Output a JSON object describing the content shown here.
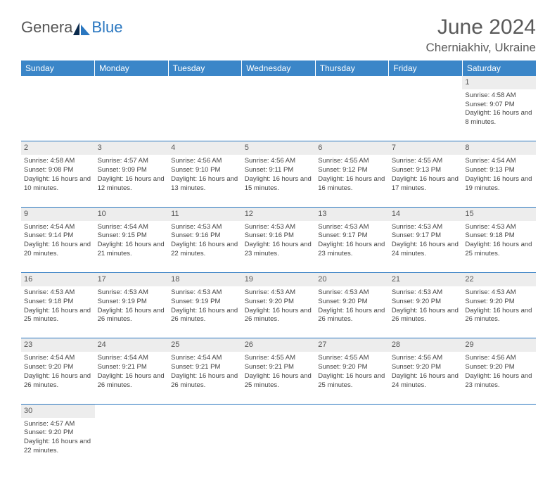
{
  "brand": {
    "part1": "Genera",
    "part2": "Blue"
  },
  "title": "June 2024",
  "location": "Cherniakhiv, Ukraine",
  "colors": {
    "header_bg": "#3b86c8",
    "header_text": "#ffffff",
    "daynum_bg": "#ededed",
    "divider": "#2a77c0",
    "text": "#444444",
    "title_text": "#5a5a5a",
    "brand_accent": "#2a77c0"
  },
  "weekdays": [
    "Sunday",
    "Monday",
    "Tuesday",
    "Wednesday",
    "Thursday",
    "Friday",
    "Saturday"
  ],
  "weeks": [
    [
      null,
      null,
      null,
      null,
      null,
      null,
      {
        "day": "1",
        "sunrise": "Sunrise: 4:58 AM",
        "sunset": "Sunset: 9:07 PM",
        "daylight": "Daylight: 16 hours and 8 minutes."
      }
    ],
    [
      {
        "day": "2",
        "sunrise": "Sunrise: 4:58 AM",
        "sunset": "Sunset: 9:08 PM",
        "daylight": "Daylight: 16 hours and 10 minutes."
      },
      {
        "day": "3",
        "sunrise": "Sunrise: 4:57 AM",
        "sunset": "Sunset: 9:09 PM",
        "daylight": "Daylight: 16 hours and 12 minutes."
      },
      {
        "day": "4",
        "sunrise": "Sunrise: 4:56 AM",
        "sunset": "Sunset: 9:10 PM",
        "daylight": "Daylight: 16 hours and 13 minutes."
      },
      {
        "day": "5",
        "sunrise": "Sunrise: 4:56 AM",
        "sunset": "Sunset: 9:11 PM",
        "daylight": "Daylight: 16 hours and 15 minutes."
      },
      {
        "day": "6",
        "sunrise": "Sunrise: 4:55 AM",
        "sunset": "Sunset: 9:12 PM",
        "daylight": "Daylight: 16 hours and 16 minutes."
      },
      {
        "day": "7",
        "sunrise": "Sunrise: 4:55 AM",
        "sunset": "Sunset: 9:13 PM",
        "daylight": "Daylight: 16 hours and 17 minutes."
      },
      {
        "day": "8",
        "sunrise": "Sunrise: 4:54 AM",
        "sunset": "Sunset: 9:13 PM",
        "daylight": "Daylight: 16 hours and 19 minutes."
      }
    ],
    [
      {
        "day": "9",
        "sunrise": "Sunrise: 4:54 AM",
        "sunset": "Sunset: 9:14 PM",
        "daylight": "Daylight: 16 hours and 20 minutes."
      },
      {
        "day": "10",
        "sunrise": "Sunrise: 4:54 AM",
        "sunset": "Sunset: 9:15 PM",
        "daylight": "Daylight: 16 hours and 21 minutes."
      },
      {
        "day": "11",
        "sunrise": "Sunrise: 4:53 AM",
        "sunset": "Sunset: 9:16 PM",
        "daylight": "Daylight: 16 hours and 22 minutes."
      },
      {
        "day": "12",
        "sunrise": "Sunrise: 4:53 AM",
        "sunset": "Sunset: 9:16 PM",
        "daylight": "Daylight: 16 hours and 23 minutes."
      },
      {
        "day": "13",
        "sunrise": "Sunrise: 4:53 AM",
        "sunset": "Sunset: 9:17 PM",
        "daylight": "Daylight: 16 hours and 23 minutes."
      },
      {
        "day": "14",
        "sunrise": "Sunrise: 4:53 AM",
        "sunset": "Sunset: 9:17 PM",
        "daylight": "Daylight: 16 hours and 24 minutes."
      },
      {
        "day": "15",
        "sunrise": "Sunrise: 4:53 AM",
        "sunset": "Sunset: 9:18 PM",
        "daylight": "Daylight: 16 hours and 25 minutes."
      }
    ],
    [
      {
        "day": "16",
        "sunrise": "Sunrise: 4:53 AM",
        "sunset": "Sunset: 9:18 PM",
        "daylight": "Daylight: 16 hours and 25 minutes."
      },
      {
        "day": "17",
        "sunrise": "Sunrise: 4:53 AM",
        "sunset": "Sunset: 9:19 PM",
        "daylight": "Daylight: 16 hours and 26 minutes."
      },
      {
        "day": "18",
        "sunrise": "Sunrise: 4:53 AM",
        "sunset": "Sunset: 9:19 PM",
        "daylight": "Daylight: 16 hours and 26 minutes."
      },
      {
        "day": "19",
        "sunrise": "Sunrise: 4:53 AM",
        "sunset": "Sunset: 9:20 PM",
        "daylight": "Daylight: 16 hours and 26 minutes."
      },
      {
        "day": "20",
        "sunrise": "Sunrise: 4:53 AM",
        "sunset": "Sunset: 9:20 PM",
        "daylight": "Daylight: 16 hours and 26 minutes."
      },
      {
        "day": "21",
        "sunrise": "Sunrise: 4:53 AM",
        "sunset": "Sunset: 9:20 PM",
        "daylight": "Daylight: 16 hours and 26 minutes."
      },
      {
        "day": "22",
        "sunrise": "Sunrise: 4:53 AM",
        "sunset": "Sunset: 9:20 PM",
        "daylight": "Daylight: 16 hours and 26 minutes."
      }
    ],
    [
      {
        "day": "23",
        "sunrise": "Sunrise: 4:54 AM",
        "sunset": "Sunset: 9:20 PM",
        "daylight": "Daylight: 16 hours and 26 minutes."
      },
      {
        "day": "24",
        "sunrise": "Sunrise: 4:54 AM",
        "sunset": "Sunset: 9:21 PM",
        "daylight": "Daylight: 16 hours and 26 minutes."
      },
      {
        "day": "25",
        "sunrise": "Sunrise: 4:54 AM",
        "sunset": "Sunset: 9:21 PM",
        "daylight": "Daylight: 16 hours and 26 minutes."
      },
      {
        "day": "26",
        "sunrise": "Sunrise: 4:55 AM",
        "sunset": "Sunset: 9:21 PM",
        "daylight": "Daylight: 16 hours and 25 minutes."
      },
      {
        "day": "27",
        "sunrise": "Sunrise: 4:55 AM",
        "sunset": "Sunset: 9:20 PM",
        "daylight": "Daylight: 16 hours and 25 minutes."
      },
      {
        "day": "28",
        "sunrise": "Sunrise: 4:56 AM",
        "sunset": "Sunset: 9:20 PM",
        "daylight": "Daylight: 16 hours and 24 minutes."
      },
      {
        "day": "29",
        "sunrise": "Sunrise: 4:56 AM",
        "sunset": "Sunset: 9:20 PM",
        "daylight": "Daylight: 16 hours and 23 minutes."
      }
    ],
    [
      {
        "day": "30",
        "sunrise": "Sunrise: 4:57 AM",
        "sunset": "Sunset: 9:20 PM",
        "daylight": "Daylight: 16 hours and 22 minutes."
      },
      null,
      null,
      null,
      null,
      null,
      null
    ]
  ]
}
